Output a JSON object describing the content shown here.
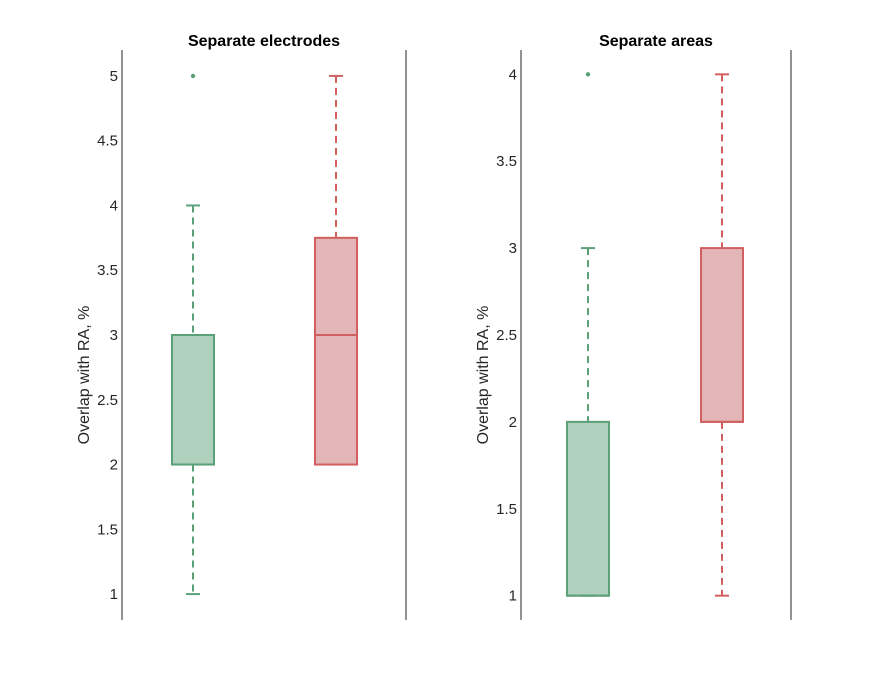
{
  "chart_data": [
    {
      "type": "box",
      "title": "Separate electrodes",
      "ylabel": "Overlap with RA, %",
      "xlabel": "",
      "ylim": [
        0.8,
        5.2
      ],
      "yticks": [
        1,
        1.5,
        2,
        2.5,
        3,
        3.5,
        4,
        4.5,
        5
      ],
      "ytick_labels": [
        "1",
        "1.5",
        "2",
        "2.5",
        "3",
        "3.5",
        "4",
        "4.5",
        "5"
      ],
      "grid": false,
      "series": [
        {
          "color": "#5aa078",
          "fill": "#b0d1bd",
          "whisker_low": 1,
          "q1": 2,
          "median": 2,
          "q3": 3,
          "whisker_high": 4,
          "outliers": [
            5
          ]
        },
        {
          "color": "#d0605f",
          "fill": "#e3b5b6",
          "whisker_low": 2,
          "q1": 2,
          "median": 3,
          "q3": 3.75,
          "whisker_high": 5,
          "outliers": []
        }
      ]
    },
    {
      "type": "box",
      "title": "Separate areas",
      "ylabel": "Overlap with RA, %",
      "xlabel": "",
      "ylim": [
        0.86,
        4.14
      ],
      "yticks": [
        1,
        1.5,
        2,
        2.5,
        3,
        3.5,
        4
      ],
      "ytick_labels": [
        "1",
        "1.5",
        "2",
        "2.5",
        "3",
        "3.5",
        "4"
      ],
      "grid": false,
      "series": [
        {
          "color": "#5aa078",
          "fill": "#b0d1bd",
          "whisker_low": 1,
          "q1": 1,
          "median": 1,
          "q3": 2,
          "whisker_high": 3,
          "outliers": [
            4
          ]
        },
        {
          "color": "#d0605f",
          "fill": "#e3b5b6",
          "whisker_low": 1,
          "q1": 2,
          "median": 2,
          "q3": 3,
          "whisker_high": 4,
          "outliers": []
        }
      ]
    }
  ]
}
